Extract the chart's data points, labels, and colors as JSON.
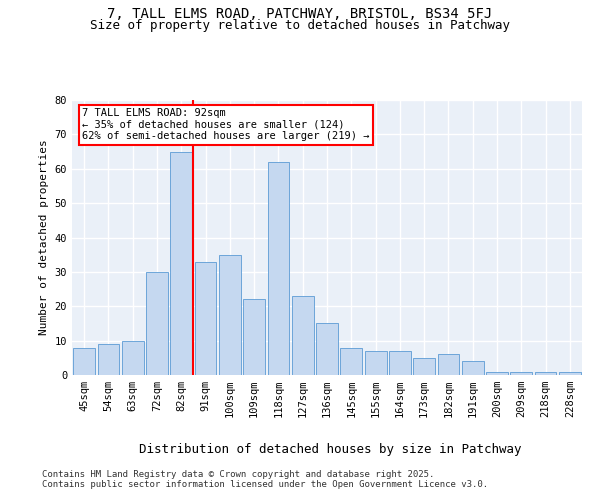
{
  "title1": "7, TALL ELMS ROAD, PATCHWAY, BRISTOL, BS34 5FJ",
  "title2": "Size of property relative to detached houses in Patchway",
  "xlabel": "Distribution of detached houses by size in Patchway",
  "ylabel": "Number of detached properties",
  "categories": [
    "45sqm",
    "54sqm",
    "63sqm",
    "72sqm",
    "82sqm",
    "91sqm",
    "100sqm",
    "109sqm",
    "118sqm",
    "127sqm",
    "136sqm",
    "145sqm",
    "155sqm",
    "164sqm",
    "173sqm",
    "182sqm",
    "191sqm",
    "200sqm",
    "209sqm",
    "218sqm",
    "228sqm"
  ],
  "values": [
    8,
    9,
    10,
    30,
    65,
    33,
    35,
    22,
    62,
    23,
    15,
    8,
    7,
    7,
    5,
    6,
    4,
    1,
    1,
    1,
    1
  ],
  "bar_color": "#c5d8f0",
  "bar_edge_color": "#5b9bd5",
  "redline_index": 5,
  "annotation_line1": "7 TALL ELMS ROAD: 92sqm",
  "annotation_line2": "← 35% of detached houses are smaller (124)",
  "annotation_line3": "62% of semi-detached houses are larger (219) →",
  "annotation_box_color": "white",
  "annotation_box_edge": "red",
  "redline_color": "red",
  "ylim": [
    0,
    80
  ],
  "yticks": [
    0,
    10,
    20,
    30,
    40,
    50,
    60,
    70,
    80
  ],
  "background_color": "#eaf0f8",
  "grid_color": "white",
  "footer1": "Contains HM Land Registry data © Crown copyright and database right 2025.",
  "footer2": "Contains public sector information licensed under the Open Government Licence v3.0.",
  "title1_fontsize": 10,
  "title2_fontsize": 9,
  "xlabel_fontsize": 9,
  "ylabel_fontsize": 8,
  "tick_fontsize": 7.5,
  "annotation_fontsize": 7.5,
  "footer_fontsize": 6.5
}
